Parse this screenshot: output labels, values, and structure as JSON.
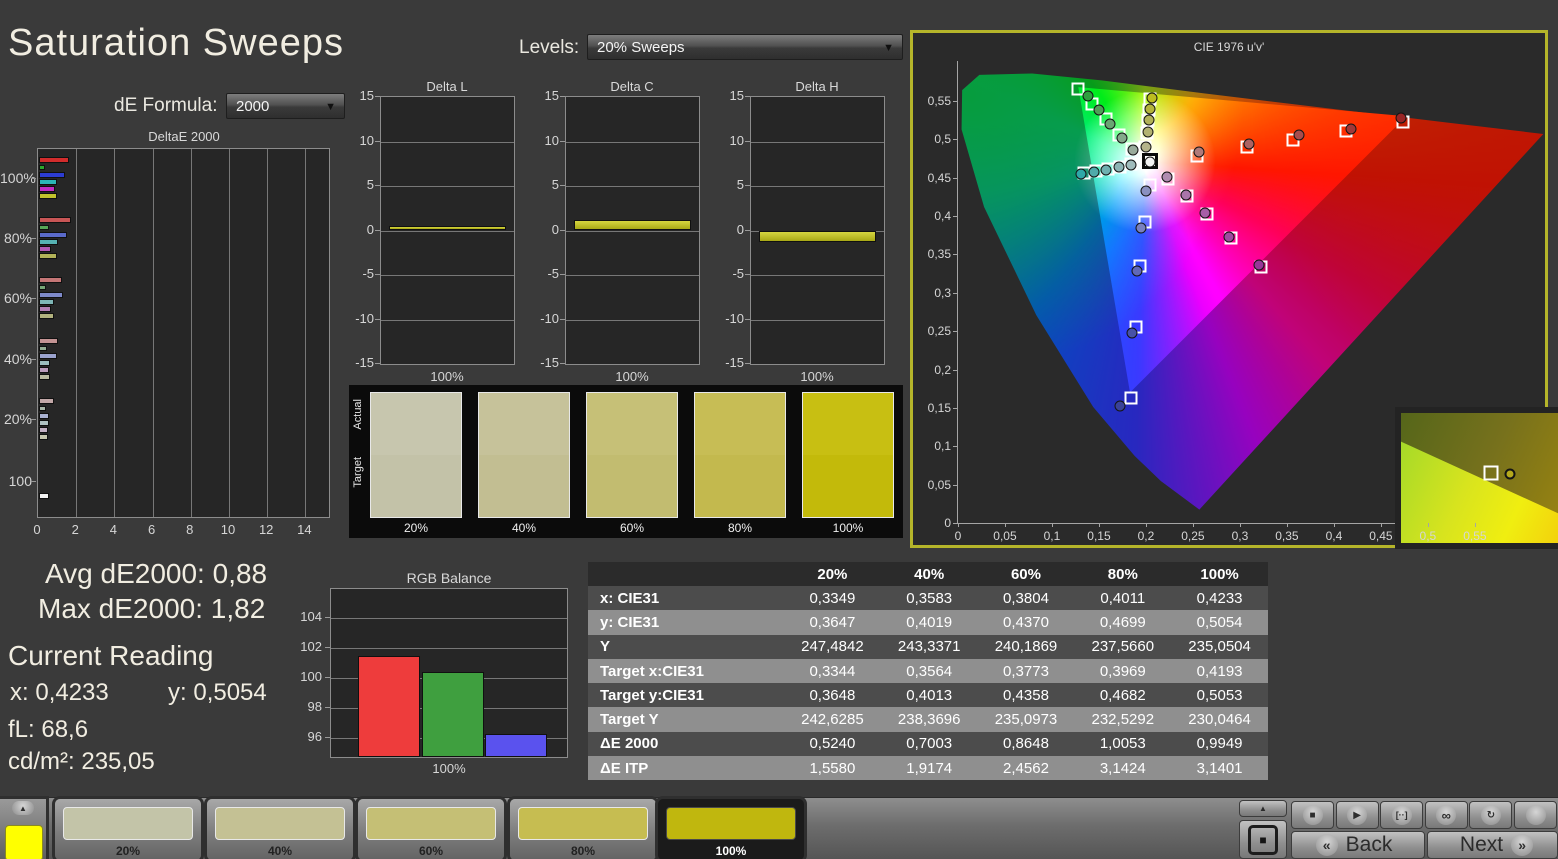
{
  "window": {
    "title": "Saturation Sweeps"
  },
  "toolbar": {
    "de_formula_label": "dE Formula:",
    "de_formula_value": "2000",
    "levels_label": "Levels:",
    "levels_value": "20% Sweeps"
  },
  "chart_data": [
    {
      "type": "bar",
      "title": "DeltaE 2000",
      "orientation": "horizontal",
      "xlim": [
        0,
        15.3
      ],
      "x_ticks": [
        0,
        2,
        4,
        6,
        8,
        10,
        12,
        14
      ],
      "categories": [
        "100%",
        "80%",
        "60%",
        "40%",
        "20%",
        "100"
      ],
      "series_names": [
        "red",
        "green",
        "blue",
        "cyan",
        "magenta",
        "yellow"
      ],
      "groups": [
        {
          "label": "100%",
          "values": [
            1.57,
            0.3,
            1.37,
            0.92,
            0.86,
            0.92
          ],
          "colors": [
            "#d22c2c",
            "#2ca62c",
            "#2c3cd2",
            "#2cb6b6",
            "#c22cc2",
            "#c2c22c"
          ]
        },
        {
          "label": "80%",
          "values": [
            1.68,
            0.54,
            1.44,
            0.97,
            0.62,
            0.92
          ],
          "colors": [
            "#c85656",
            "#56a656",
            "#5a6aca",
            "#56b2b2",
            "#b258b2",
            "#b2b258"
          ]
        },
        {
          "label": "60%",
          "values": [
            1.22,
            0.37,
            1.27,
            0.78,
            0.65,
            0.78
          ],
          "colors": [
            "#c47676",
            "#76a676",
            "#7e8aca",
            "#7eb6b6",
            "#b27eb2",
            "#b2b27e"
          ]
        },
        {
          "label": "40%",
          "values": [
            1.0,
            0.41,
            0.94,
            0.57,
            0.54,
            0.6
          ],
          "colors": [
            "#c49494",
            "#94ae94",
            "#9aa2ce",
            "#9cbebe",
            "#ba9cba",
            "#babaa0"
          ]
        },
        {
          "label": "20%",
          "values": [
            0.81,
            0.37,
            0.54,
            0.54,
            0.46,
            0.49
          ],
          "colors": [
            "#c2a8a8",
            "#a8b6a8",
            "#aab2d2",
            "#b0c2c2",
            "#c2b0c2",
            "#c6c6ae"
          ]
        },
        {
          "label": "100",
          "values": [
            0.52
          ],
          "colors": [
            "#f2f2f2"
          ]
        }
      ]
    },
    {
      "type": "bar",
      "title": "Delta L",
      "ylim": [
        -15,
        15
      ],
      "y_ticks": [
        15,
        10,
        5,
        0,
        -5,
        -10,
        -15
      ],
      "categories": [
        "100%"
      ],
      "values": [
        0.5
      ],
      "bar_color": "#c8c832"
    },
    {
      "type": "bar",
      "title": "Delta C",
      "ylim": [
        -15,
        15
      ],
      "y_ticks": [
        15,
        10,
        5,
        0,
        -5,
        -10,
        -15
      ],
      "categories": [
        "100%"
      ],
      "values": [
        1.2
      ],
      "bar_color": "#c8c832"
    },
    {
      "type": "bar",
      "title": "Delta H",
      "ylim": [
        -15,
        15
      ],
      "y_ticks": [
        15,
        10,
        5,
        0,
        -5,
        -10,
        -15
      ],
      "categories": [
        "100%"
      ],
      "values": [
        -1.3
      ],
      "bar_color": "#c8c832"
    },
    {
      "type": "bar",
      "title": "RGB Balance",
      "ylim": [
        94.6,
        105.9
      ],
      "y_ticks": [
        104,
        102,
        100,
        98,
        96
      ],
      "categories": [
        "red",
        "green",
        "blue"
      ],
      "values": [
        101.5,
        100.4,
        96.3
      ],
      "colors": [
        "#ee3c3c",
        "#3f9f3f",
        "#5a52ee"
      ],
      "xlabel": "100%"
    },
    {
      "type": "scatter",
      "title": "CIE 1976 u'v'",
      "xlim": [
        0,
        0.631
      ],
      "ylim": [
        0,
        0.602
      ],
      "x_ticks": [
        "0",
        "0,05",
        "0,1",
        "0,15",
        "0,2",
        "0,25",
        "0,3",
        "0,35",
        "0,4",
        "0,45",
        "0,5",
        "0,55"
      ],
      "y_ticks": [
        "0",
        "0,05",
        "0,1",
        "0,15",
        "0,2",
        "0,25",
        "0,3",
        "0,35",
        "0,4",
        "0,45",
        "0,5",
        "0,55"
      ],
      "gamut_triangle": [
        [
          0.128,
          0.568
        ],
        [
          0.477,
          0.53
        ],
        [
          0.183,
          0.17
        ]
      ],
      "sweeps": [
        {
          "name": "green",
          "squares": [
            [
              0.128,
              0.566
            ],
            [
              0.143,
              0.546
            ],
            [
              0.157,
              0.526
            ],
            [
              0.171,
              0.506
            ],
            [
              0.185,
              0.487
            ]
          ],
          "circles": [
            [
              0.138,
              0.556
            ],
            [
              0.15,
              0.538
            ],
            [
              0.162,
              0.52
            ],
            [
              0.174,
              0.502
            ],
            [
              0.186,
              0.486
            ]
          ],
          "fills": [
            "#2f9f3f",
            "#4f9f57",
            "#6aa573",
            "#84a98b",
            "#98ab9c"
          ]
        },
        {
          "name": "cyan",
          "squares": [
            [
              0.134,
              0.4555
            ],
            [
              0.147,
              0.4585
            ],
            [
              0.16,
              0.4615
            ],
            [
              0.172,
              0.4645
            ],
            [
              0.1845,
              0.4675
            ]
          ],
          "circles": [
            [
              0.131,
              0.4545
            ],
            [
              0.1445,
              0.4575
            ],
            [
              0.158,
              0.4605
            ],
            [
              0.1715,
              0.4635
            ],
            [
              0.1845,
              0.4665
            ]
          ],
          "fills": [
            "#2fa8a8",
            "#4faaaa",
            "#6fb0b0",
            "#8cb4b4",
            "#a0bcbc"
          ]
        },
        {
          "name": "yellow",
          "squares": [
            [
              0.1994,
              0.4894
            ],
            [
              0.2007,
              0.5085
            ],
            [
              0.2019,
              0.5247
            ],
            [
              0.2029,
              0.5386
            ],
            [
              0.2039,
              0.5529
            ]
          ],
          "circles": [
            [
              0.1998,
              0.4894
            ],
            [
              0.2017,
              0.509
            ],
            [
              0.2033,
              0.5256
            ],
            [
              0.2047,
              0.5396
            ],
            [
              0.206,
              0.5535
            ]
          ],
          "fills": [
            "#b4b48a",
            "#b2b271",
            "#b2b258",
            "#b4b43c",
            "#bcbc20"
          ]
        },
        {
          "name": "red",
          "squares": [
            [
              0.254,
              0.478
            ],
            [
              0.308,
              0.49
            ],
            [
              0.356,
              0.499
            ],
            [
              0.413,
              0.511
            ],
            [
              0.474,
              0.523
            ]
          ],
          "circles": [
            [
              0.256,
              0.483
            ],
            [
              0.31,
              0.494
            ],
            [
              0.363,
              0.505
            ],
            [
              0.418,
              0.514
            ],
            [
              0.471,
              0.528
            ]
          ],
          "fills": [
            "#b07a7a",
            "#ad6262",
            "#a84c4c",
            "#a03838",
            "#992525"
          ]
        },
        {
          "name": "magenta",
          "squares": [
            [
              0.223,
              0.448
            ],
            [
              0.244,
              0.426
            ],
            [
              0.265,
              0.403
            ],
            [
              0.29,
              0.371
            ],
            [
              0.322,
              0.333
            ]
          ],
          "circles": [
            [
              0.2225,
              0.451
            ],
            [
              0.243,
              0.428
            ],
            [
              0.263,
              0.404
            ],
            [
              0.288,
              0.373
            ],
            [
              0.32,
              0.336
            ]
          ],
          "fills": [
            "#b08cb0",
            "#aa74aa",
            "#a75ea7",
            "#a04aa0",
            "#983698"
          ]
        },
        {
          "name": "blue",
          "squares": [
            [
              0.204,
              0.44
            ],
            [
              0.199,
              0.392
            ],
            [
              0.194,
              0.335
            ],
            [
              0.189,
              0.255
            ],
            [
              0.184,
              0.163
            ]
          ],
          "circles": [
            [
              0.2,
              0.433
            ],
            [
              0.195,
              0.385
            ],
            [
              0.19,
              0.329
            ],
            [
              0.185,
              0.248
            ],
            [
              0.172,
              0.152
            ]
          ],
          "fills": [
            "#8a90c0",
            "#7880c0",
            "#6068b8",
            "#4852a8",
            "#3a4298"
          ]
        }
      ],
      "highlight": {
        "square": [
          0.2045,
          0.4715
        ],
        "circle": [
          0.204,
          0.471
        ]
      }
    }
  ],
  "swatch_strip": {
    "actual_label": "Actual",
    "target_label": "Target",
    "swatches": [
      {
        "label": "20%",
        "actual": "#c7c6ae",
        "target": "#c3c2a8"
      },
      {
        "label": "40%",
        "actual": "#c6c29a",
        "target": "#c2be92"
      },
      {
        "label": "60%",
        "actual": "#c6c077",
        "target": "#c2bc70"
      },
      {
        "label": "80%",
        "actual": "#c7bd55",
        "target": "#c3b94e"
      },
      {
        "label": "100%",
        "actual": "#c8bf12",
        "target": "#c3ba0a"
      }
    ]
  },
  "stats": {
    "avg_label": "Avg dE2000:",
    "avg_value": "0,88",
    "max_label": "Max dE2000:",
    "max_value": "1,82",
    "current_heading": "Current Reading",
    "x_label": "x:",
    "x_value": "0,4233",
    "y_label": "y:",
    "y_value": "0,5054",
    "fl_label": "fL:",
    "fl_value": "68,6",
    "cd_label": "cd/m²:",
    "cd_value": "235,05"
  },
  "table": {
    "headers": [
      "",
      "20%",
      "40%",
      "60%",
      "80%",
      "100%"
    ],
    "rows": [
      {
        "label": "x: CIE31",
        "values": [
          "0,3349",
          "0,3583",
          "0,3804",
          "0,4011",
          "0,4233"
        ]
      },
      {
        "label": "y: CIE31",
        "values": [
          "0,3647",
          "0,4019",
          "0,4370",
          "0,4699",
          "0,5054"
        ]
      },
      {
        "label": "Y",
        "values": [
          "247,4842",
          "243,3371",
          "240,1869",
          "237,5660",
          "235,0504"
        ]
      },
      {
        "label": "Target x:CIE31",
        "values": [
          "0,3344",
          "0,3564",
          "0,3773",
          "0,3969",
          "0,4193"
        ]
      },
      {
        "label": "Target y:CIE31",
        "values": [
          "0,3648",
          "0,4013",
          "0,4358",
          "0,4682",
          "0,5053"
        ]
      },
      {
        "label": "Target Y",
        "values": [
          "242,6285",
          "238,3696",
          "235,0973",
          "232,5292",
          "230,0464"
        ]
      },
      {
        "label": "ΔE 2000",
        "values": [
          "0,5240",
          "0,7003",
          "0,8648",
          "1,0053",
          "0,9949"
        ]
      },
      {
        "label": "ΔE ITP",
        "values": [
          "1,5580",
          "1,9174",
          "2,4562",
          "3,1424",
          "3,1401"
        ]
      }
    ],
    "row_dark": "#4c4c4c",
    "row_light": "#8f8f8f"
  },
  "bottom_bar": {
    "preview_color": "#ffff00",
    "tiles": [
      {
        "label": "20%",
        "color": "#c3c4a8",
        "selected": false
      },
      {
        "label": "40%",
        "color": "#c4c194",
        "selected": false
      },
      {
        "label": "60%",
        "color": "#c5bf75",
        "selected": false
      },
      {
        "label": "80%",
        "color": "#c6bd51",
        "selected": false
      },
      {
        "label": "100%",
        "color": "#c0b70e",
        "selected": true
      }
    ],
    "back_label": "Back",
    "next_label": "Next",
    "icons": {
      "up_arrow": "▲",
      "stop": "■",
      "play": "▶",
      "marker": "[··]",
      "infinity": "∞",
      "loop": "↻",
      "back_chevron": "«",
      "next_chevron": "»",
      "measure_square": "■"
    }
  },
  "accent_colors": {
    "panel_border": "#b5b52a",
    "background": "#3a3a3a",
    "chart_bg": "#262626"
  }
}
